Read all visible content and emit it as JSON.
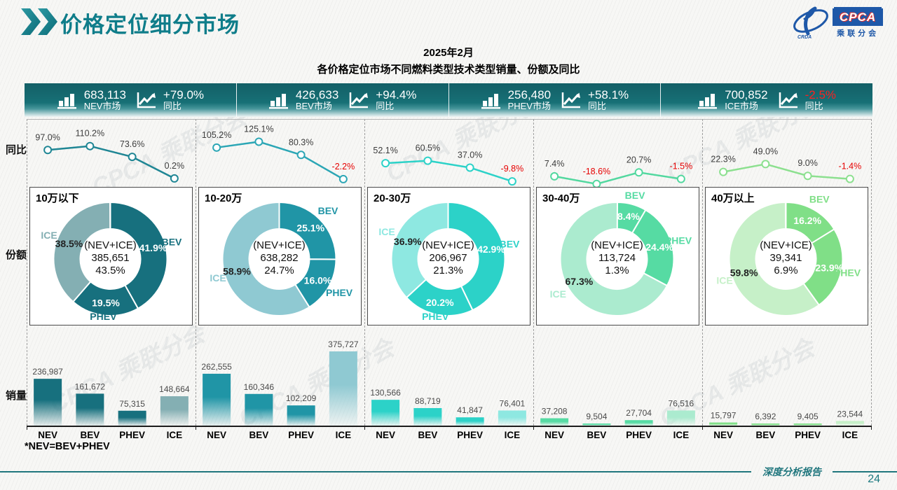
{
  "header": {
    "title": "价格定位细分市场",
    "logo": {
      "cpca": "CPCA",
      "sub": "乘联分会",
      "crda": "CRDA"
    }
  },
  "subtitle": {
    "line1": "2025年2月",
    "line2": "各价格定位市场不同燃料类型技术类型销量、份额及同比"
  },
  "kpis": [
    {
      "value": "683,113",
      "label": "NEV市场",
      "change": "+79.0%",
      "change_label": "同比",
      "negative": false
    },
    {
      "value": "426,633",
      "label": "BEV市场",
      "change": "+94.4%",
      "change_label": "同比",
      "negative": false
    },
    {
      "value": "256,480",
      "label": "PHEV市场",
      "change": "+58.1%",
      "change_label": "同比",
      "negative": false
    },
    {
      "value": "700,852",
      "label": "ICE市场",
      "change": "-2.5%",
      "change_label": "同比",
      "negative": true
    }
  ],
  "row_labels": {
    "yoy": "同比",
    "share": "份额",
    "sales": "销量"
  },
  "note": "*NEV=BEV+PHEV",
  "footer": {
    "report": "深度分析报告",
    "page": "24"
  },
  "watermark": "CPCA 乘联分会",
  "chart_data": [
    {
      "segment": "10万以下",
      "colors": {
        "main": "#17707e",
        "light": "#84afb3",
        "line": "#1f8694"
      },
      "yoy": {
        "type": "line",
        "categories": [
          "NEV",
          "BEV",
          "PHEV",
          "ICE"
        ],
        "values_pct": [
          97.0,
          110.2,
          73.6,
          0.2
        ]
      },
      "share": {
        "type": "donut",
        "slices": [
          {
            "name": "BEV",
            "pct": 41.9
          },
          {
            "name": "PHEV",
            "pct": 19.5
          },
          {
            "name": "ICE",
            "pct": 38.5
          }
        ],
        "center_label": "(NEV+ICE)",
        "center_value": "385,651",
        "center_pct": "43.5%"
      },
      "sales": {
        "type": "bar",
        "categories": [
          "NEV",
          "BEV",
          "PHEV",
          "ICE"
        ],
        "values": [
          236987,
          161672,
          75315,
          148664
        ]
      }
    },
    {
      "segment": "10-20万",
      "colors": {
        "main": "#2095a6",
        "light": "#8fc9d2",
        "line": "#2ba6b5"
      },
      "yoy": {
        "type": "line",
        "categories": [
          "NEV",
          "BEV",
          "PHEV",
          "ICE"
        ],
        "values_pct": [
          105.2,
          125.1,
          80.3,
          -2.2
        ]
      },
      "share": {
        "type": "donut",
        "slices": [
          {
            "name": "BEV",
            "pct": 25.1
          },
          {
            "name": "PHEV",
            "pct": 16.0
          },
          {
            "name": "ICE",
            "pct": 58.9
          }
        ],
        "center_label": "(NEV+ICE)",
        "center_value": "638,282",
        "center_pct": "24.7%"
      },
      "sales": {
        "type": "bar",
        "categories": [
          "NEV",
          "BEV",
          "PHEV",
          "ICE"
        ],
        "values": [
          262555,
          160346,
          102209,
          375727
        ]
      }
    },
    {
      "segment": "20-30万",
      "colors": {
        "main": "#2cd2c8",
        "light": "#8ee8e1",
        "line": "#2cd2c8"
      },
      "yoy": {
        "type": "line",
        "categories": [
          "NEV",
          "BEV",
          "PHEV",
          "ICE"
        ],
        "values_pct": [
          52.1,
          60.5,
          37.0,
          -9.8
        ]
      },
      "share": {
        "type": "donut",
        "slices": [
          {
            "name": "BEV",
            "pct": 42.9
          },
          {
            "name": "PHEV",
            "pct": 20.2
          },
          {
            "name": "ICE",
            "pct": 36.9
          }
        ],
        "center_label": "(NEV+ICE)",
        "center_value": "206,967",
        "center_pct": "21.3%"
      },
      "sales": {
        "type": "bar",
        "categories": [
          "NEV",
          "BEV",
          "PHEV",
          "ICE"
        ],
        "values": [
          130566,
          88719,
          41847,
          76401
        ]
      }
    },
    {
      "segment": "30-40万",
      "colors": {
        "main": "#56dba3",
        "light": "#abebcf",
        "line": "#52d89f"
      },
      "yoy": {
        "type": "line",
        "categories": [
          "NEV",
          "BEV",
          "PHEV",
          "ICE"
        ],
        "values_pct": [
          7.4,
          -18.6,
          20.7,
          -1.5
        ]
      },
      "share": {
        "type": "donut",
        "slices": [
          {
            "name": "BEV",
            "pct": 8.4
          },
          {
            "name": "PHEV",
            "pct": 24.4
          },
          {
            "name": "ICE",
            "pct": 67.3
          }
        ],
        "center_label": "(NEV+ICE)",
        "center_value": "113,724",
        "center_pct": "1.3%"
      },
      "sales": {
        "type": "bar",
        "categories": [
          "NEV",
          "BEV",
          "PHEV",
          "ICE"
        ],
        "values": [
          37208,
          9504,
          27704,
          76516
        ]
      }
    },
    {
      "segment": "40万以上",
      "colors": {
        "main": "#80df87",
        "light": "#c6f0c8",
        "line": "#8ce08f"
      },
      "yoy": {
        "type": "line",
        "categories": [
          "NEV",
          "BEV",
          "PHEV",
          "ICE"
        ],
        "values_pct": [
          22.3,
          49.0,
          9.0,
          -1.4
        ]
      },
      "share": {
        "type": "donut",
        "slices": [
          {
            "name": "BEV",
            "pct": 16.2
          },
          {
            "name": "PHEV",
            "pct": 23.9
          },
          {
            "name": "ICE",
            "pct": 59.8
          }
        ],
        "center_label": "(NEV+ICE)",
        "center_value": "39,341",
        "center_pct": "6.9%"
      },
      "sales": {
        "type": "bar",
        "categories": [
          "NEV",
          "BEV",
          "PHEV",
          "ICE"
        ],
        "values": [
          15797,
          6392,
          9405,
          23544
        ]
      }
    }
  ]
}
